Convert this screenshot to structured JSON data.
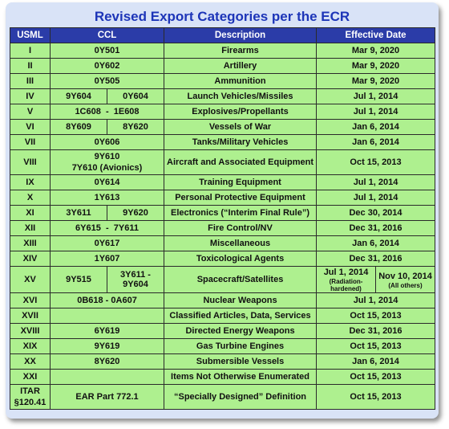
{
  "title": "Revised Export Categories per the ECR",
  "headers": {
    "usml": "USML",
    "ccl": "CCL",
    "description": "Description",
    "date": "Effective Date"
  },
  "rows": [
    {
      "usml": "I",
      "ccl": "0Y501",
      "description": "Firearms",
      "date": "Mar 9, 2020"
    },
    {
      "usml": "II",
      "ccl": "0Y602",
      "description": "Artillery",
      "date": "Mar 9, 2020"
    },
    {
      "usml": "III",
      "ccl": "0Y505",
      "description": "Ammunition",
      "date": "Mar 9, 2020"
    },
    {
      "usml": "IV",
      "ccl_a": "9Y604",
      "ccl_b": "0Y604",
      "description": "Launch Vehicles/Missiles",
      "date": "Jul 1, 2014"
    },
    {
      "usml": "V",
      "ccl": "1C608  -  1E608",
      "description": "Explosives/Propellants",
      "date": "Jul 1, 2014"
    },
    {
      "usml": "VI",
      "ccl_a": "8Y609",
      "ccl_b": "8Y620",
      "description": "Vessels of War",
      "date": "Jan 6, 2014"
    },
    {
      "usml": "VII",
      "ccl": "0Y606",
      "description": "Tanks/Military Vehicles",
      "date": "Jan 6, 2014"
    },
    {
      "usml": "VIII",
      "ccl_line1": "9Y610",
      "ccl_line2": "7Y610 (Avionics)",
      "description": "Aircraft and Associated Equipment",
      "date": "Oct 15, 2013"
    },
    {
      "usml": "IX",
      "ccl": "0Y614",
      "description": "Training Equipment",
      "date": "Jul 1, 2014"
    },
    {
      "usml": "X",
      "ccl": "1Y613",
      "description": "Personal Protective Equipment",
      "date": "Jul 1, 2014"
    },
    {
      "usml": "XI",
      "ccl_a": "3Y611",
      "ccl_b": "9Y620",
      "description": "Electronics (“Interim Final Rule”)",
      "date": "Dec 30, 2014"
    },
    {
      "usml": "XII",
      "ccl": "6Y615  -  7Y611",
      "description": "Fire Control/NV",
      "date": "Dec 31, 2016"
    },
    {
      "usml": "XIII",
      "ccl": "0Y617",
      "description": "Miscellaneous",
      "date": "Jan 6, 2014"
    },
    {
      "usml": "XIV",
      "ccl": "1Y607",
      "description": "Toxicological Agents",
      "date": "Dec 31, 2016"
    },
    {
      "usml": "XV",
      "ccl_a": "9Y515",
      "ccl_b": "3Y611 - 9Y604",
      "description": "Spacecraft/Satellites",
      "date_a": "Jul 1, 2014",
      "date_a_note": "(Radiation-hardened)",
      "date_b": "Nov 10, 2014",
      "date_b_note": "(All others)"
    },
    {
      "usml": "XVI",
      "ccl": "0B618 - 0A607",
      "description": "Nuclear Weapons",
      "date": "Jul 1, 2014"
    },
    {
      "usml": "XVII",
      "ccl": "",
      "description": "Classified Articles, Data, Services",
      "date": "Oct 15, 2013"
    },
    {
      "usml": "XVIII",
      "ccl": "6Y619",
      "description": "Directed Energy Weapons",
      "date": "Dec 31, 2016"
    },
    {
      "usml": "XIX",
      "ccl": "9Y619",
      "description": "Gas Turbine Engines",
      "date": "Oct 15, 2013"
    },
    {
      "usml": "XX",
      "ccl": "8Y620",
      "description": "Submersible Vessels",
      "date": "Jan 6, 2014"
    },
    {
      "usml": "XXI",
      "ccl": "",
      "description": "Items Not Otherwise Enumerated",
      "date": "Oct 15, 2013"
    },
    {
      "usml_line1": "ITAR",
      "usml_line2": "§120.41",
      "ccl": "EAR Part 772.1",
      "description": "“Specially Designed” Definition",
      "date": "Oct 15, 2013"
    }
  ]
}
